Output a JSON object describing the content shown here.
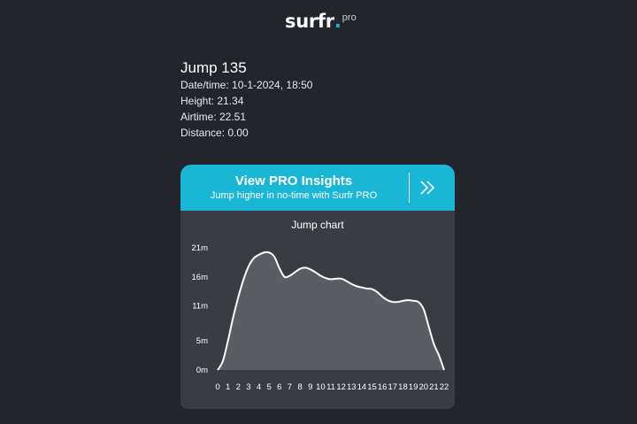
{
  "header": {
    "logo_main": "surfr",
    "logo_dot": ".",
    "logo_suffix": "pro"
  },
  "jump": {
    "title": "Jump 135",
    "datetime": "Date/time: 10-1-2024, 18:50",
    "height": "Height: 21.34",
    "airtime": "Airtime: 22.51",
    "distance": "Distance: 0.00"
  },
  "banner": {
    "title": "View PRO Insights",
    "subtitle": "Jump higher in no-time with Surfr PRO",
    "arrow_icon": "double-chevron-right-icon"
  },
  "colors": {
    "background": "#22252b",
    "accent": "#1ab6d6",
    "panel": "#393c42",
    "area_fill": "#5a5d62",
    "line": "#ffffff"
  },
  "chart_data": {
    "type": "area",
    "title": "Jump chart",
    "xlabel": "",
    "ylabel": "",
    "x_ticks": [
      "0",
      "1",
      "2",
      "3",
      "4",
      "5",
      "6",
      "7",
      "8",
      "9",
      "10",
      "11",
      "12",
      "13",
      "14",
      "15",
      "16",
      "17",
      "18",
      "19",
      "20",
      "21",
      "22"
    ],
    "y_ticks": [
      "0m",
      "5m",
      "11m",
      "16m",
      "21m"
    ],
    "y_tick_values": [
      0,
      5,
      11,
      16,
      21
    ],
    "xlim": [
      0,
      22
    ],
    "ylim": [
      0,
      21
    ],
    "grid": false,
    "x": [
      0,
      0.5,
      1,
      1.5,
      2,
      2.5,
      3,
      3.5,
      4,
      4.5,
      5,
      5.5,
      6,
      6.5,
      7,
      7.5,
      8,
      8.5,
      9,
      9.5,
      10,
      10.5,
      11,
      11.5,
      12,
      12.5,
      13,
      13.5,
      14,
      14.5,
      15,
      15.5,
      16,
      16.5,
      17,
      17.5,
      18,
      18.5,
      19,
      19.5,
      20,
      20.5,
      21,
      21.5,
      22
    ],
    "values": [
      0,
      1.5,
      5,
      9,
      12.5,
      15.5,
      17.8,
      19.2,
      19.8,
      20.2,
      20.2,
      19.5,
      17.5,
      16,
      16.2,
      16.8,
      17.4,
      17.6,
      17.3,
      16.8,
      16.2,
      15.8,
      15.6,
      15.7,
      15.7,
      15.3,
      14.8,
      14.4,
      14.2,
      14.0,
      13.9,
      13.4,
      12.6,
      12.0,
      11.7,
      11.7,
      11.9,
      12.0,
      11.9,
      11.7,
      10.5,
      7.5,
      4.5,
      2.5,
      0
    ]
  }
}
